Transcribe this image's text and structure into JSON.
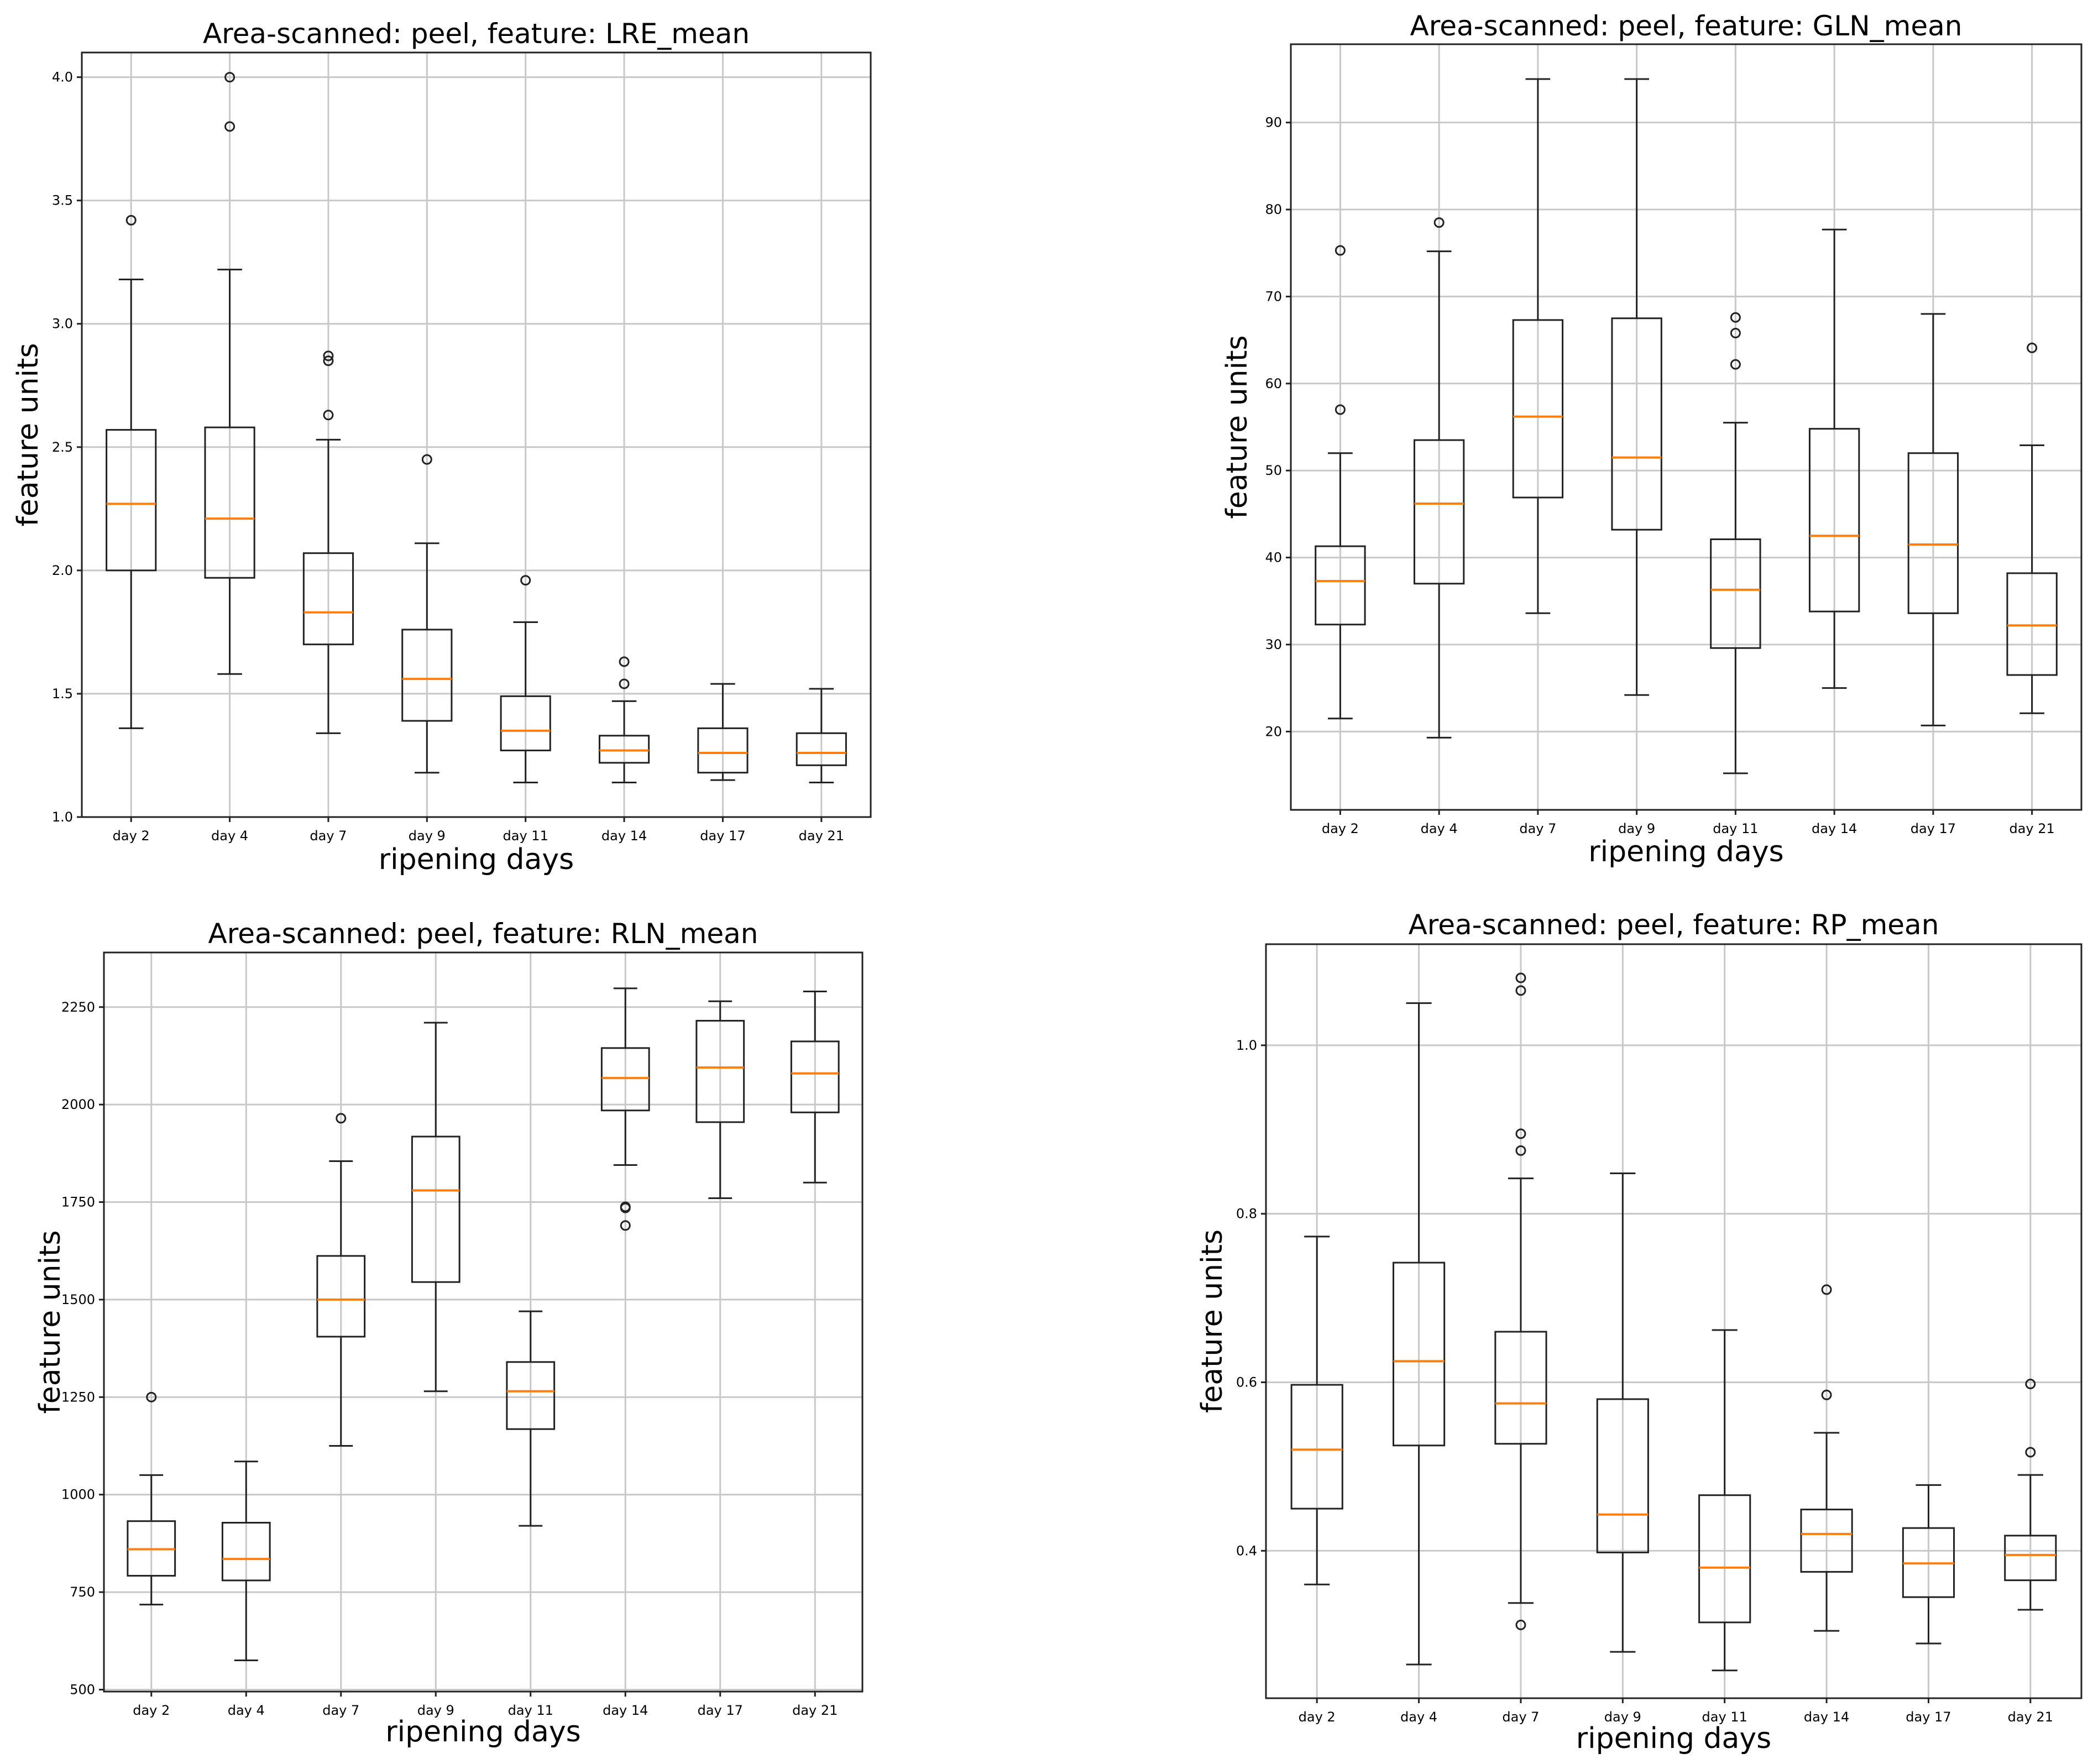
{
  "chart_data": [
    {
      "type": "box",
      "title": "Area-scanned: peel, feature: LRE_mean",
      "xlabel": "ripening days",
      "ylabel": "feature units",
      "categories": [
        "day 2",
        "day 4",
        "day 7",
        "day 9",
        "day 11",
        "day 14",
        "day 17",
        "day 21"
      ],
      "ylim": [
        1.0,
        4.1
      ],
      "yticks": [
        1.0,
        1.5,
        2.0,
        2.5,
        3.0,
        3.5,
        4.0
      ],
      "ytick_labels": [
        "1.0",
        "1.5",
        "2.0",
        "2.5",
        "3.0",
        "3.5",
        "4.0"
      ],
      "grid": true,
      "boxes": [
        {
          "whislo": 1.36,
          "q1": 2.0,
          "med": 2.27,
          "q3": 2.57,
          "whishi": 3.18,
          "fliers": [
            3.42
          ]
        },
        {
          "whislo": 1.58,
          "q1": 1.97,
          "med": 2.21,
          "q3": 2.58,
          "whishi": 3.22,
          "fliers": [
            3.8,
            4.0
          ]
        },
        {
          "whislo": 1.34,
          "q1": 1.7,
          "med": 1.83,
          "q3": 2.07,
          "whishi": 2.53,
          "fliers": [
            2.63,
            2.85,
            2.87
          ]
        },
        {
          "whislo": 1.18,
          "q1": 1.39,
          "med": 1.56,
          "q3": 1.76,
          "whishi": 2.11,
          "fliers": [
            2.45
          ]
        },
        {
          "whislo": 1.14,
          "q1": 1.27,
          "med": 1.35,
          "q3": 1.49,
          "whishi": 1.79,
          "fliers": [
            1.96
          ]
        },
        {
          "whislo": 1.14,
          "q1": 1.22,
          "med": 1.27,
          "q3": 1.33,
          "whishi": 1.47,
          "fliers": [
            1.54,
            1.63
          ]
        },
        {
          "whislo": 1.15,
          "q1": 1.18,
          "med": 1.26,
          "q3": 1.36,
          "whishi": 1.54,
          "fliers": []
        },
        {
          "whislo": 1.14,
          "q1": 1.21,
          "med": 1.26,
          "q3": 1.34,
          "whishi": 1.52,
          "fliers": []
        }
      ]
    },
    {
      "type": "box",
      "title": "Area-scanned: peel, feature: GLN_mean",
      "xlabel": "ripening days",
      "ylabel": "feature units",
      "categories": [
        "day 2",
        "day 4",
        "day 7",
        "day 9",
        "day 11",
        "day 14",
        "day 17",
        "day 21"
      ],
      "ylim": [
        11,
        99
      ],
      "yticks": [
        20,
        30,
        40,
        50,
        60,
        70,
        80,
        90
      ],
      "ytick_labels": [
        "20",
        "30",
        "40",
        "50",
        "60",
        "70",
        "80",
        "90"
      ],
      "grid": true,
      "boxes": [
        {
          "whislo": 21.5,
          "q1": 32.3,
          "med": 37.3,
          "q3": 41.3,
          "whishi": 52.0,
          "fliers": [
            57.0,
            75.3
          ]
        },
        {
          "whislo": 19.3,
          "q1": 37.0,
          "med": 46.2,
          "q3": 53.5,
          "whishi": 75.2,
          "fliers": [
            78.5
          ]
        },
        {
          "whislo": 33.6,
          "q1": 46.9,
          "med": 56.2,
          "q3": 67.3,
          "whishi": 95.0,
          "fliers": []
        },
        {
          "whislo": 24.2,
          "q1": 43.2,
          "med": 51.5,
          "q3": 67.5,
          "whishi": 95.0,
          "fliers": []
        },
        {
          "whislo": 15.2,
          "q1": 29.6,
          "med": 36.3,
          "q3": 42.1,
          "whishi": 55.5,
          "fliers": [
            62.2,
            65.8,
            67.6
          ]
        },
        {
          "whislo": 25.0,
          "q1": 33.8,
          "med": 42.5,
          "q3": 54.8,
          "whishi": 77.7,
          "fliers": []
        },
        {
          "whislo": 20.7,
          "q1": 33.6,
          "med": 41.5,
          "q3": 52.0,
          "whishi": 68.0,
          "fliers": []
        },
        {
          "whislo": 22.1,
          "q1": 26.5,
          "med": 32.2,
          "q3": 38.2,
          "whishi": 52.9,
          "fliers": [
            64.1
          ]
        }
      ]
    },
    {
      "type": "box",
      "title": "Area-scanned: peel, feature: RLN_mean",
      "xlabel": "ripening days",
      "ylabel": "feature units",
      "categories": [
        "day 2",
        "day 4",
        "day 7",
        "day 9",
        "day 11",
        "day 14",
        "day 17",
        "day 21"
      ],
      "ylim": [
        495,
        2390
      ],
      "yticks": [
        500,
        750,
        1000,
        1250,
        1500,
        1750,
        2000,
        2250
      ],
      "ytick_labels": [
        "500",
        "750",
        "1000",
        "1250",
        "1500",
        "1750",
        "2000",
        "2250"
      ],
      "grid": true,
      "boxes": [
        {
          "whislo": 718,
          "q1": 792,
          "med": 860,
          "q3": 932,
          "whishi": 1050,
          "fliers": [
            1250
          ]
        },
        {
          "whislo": 575,
          "q1": 780,
          "med": 835,
          "q3": 928,
          "whishi": 1085,
          "fliers": []
        },
        {
          "whislo": 1125,
          "q1": 1405,
          "med": 1500,
          "q3": 1612,
          "whishi": 1855,
          "fliers": [
            1965
          ]
        },
        {
          "whislo": 1265,
          "q1": 1545,
          "med": 1780,
          "q3": 1918,
          "whishi": 2210,
          "fliers": []
        },
        {
          "whislo": 920,
          "q1": 1168,
          "med": 1265,
          "q3": 1340,
          "whishi": 1470,
          "fliers": []
        },
        {
          "whislo": 1845,
          "q1": 1985,
          "med": 2068,
          "q3": 2145,
          "whishi": 2298,
          "fliers": [
            1690,
            1735,
            1738
          ]
        },
        {
          "whislo": 1760,
          "q1": 1955,
          "med": 2095,
          "q3": 2215,
          "whishi": 2265,
          "fliers": []
        },
        {
          "whislo": 1800,
          "q1": 1980,
          "med": 2080,
          "q3": 2162,
          "whishi": 2290,
          "fliers": []
        }
      ]
    },
    {
      "type": "box",
      "title": "Area-scanned: peel, feature: RP_mean",
      "xlabel": "ripening days",
      "ylabel": "feature units",
      "categories": [
        "day 2",
        "day 4",
        "day 7",
        "day 9",
        "day 11",
        "day 14",
        "day 17",
        "day 21"
      ],
      "ylim": [
        0.225,
        1.12
      ],
      "yticks": [
        0.4,
        0.6,
        0.8,
        1.0
      ],
      "ytick_labels": [
        "0.4",
        "0.6",
        "0.8",
        "1.0"
      ],
      "grid": true,
      "boxes": [
        {
          "whislo": 0.36,
          "q1": 0.45,
          "med": 0.52,
          "q3": 0.597,
          "whishi": 0.773,
          "fliers": []
        },
        {
          "whislo": 0.265,
          "q1": 0.525,
          "med": 0.625,
          "q3": 0.742,
          "whishi": 1.05,
          "fliers": []
        },
        {
          "whislo": 0.338,
          "q1": 0.527,
          "med": 0.575,
          "q3": 0.66,
          "whishi": 0.842,
          "fliers": [
            0.312,
            0.875,
            0.895,
            1.065,
            1.08
          ]
        },
        {
          "whislo": 0.28,
          "q1": 0.398,
          "med": 0.443,
          "q3": 0.58,
          "whishi": 0.848,
          "fliers": []
        },
        {
          "whislo": 0.258,
          "q1": 0.315,
          "med": 0.38,
          "q3": 0.466,
          "whishi": 0.662,
          "fliers": []
        },
        {
          "whislo": 0.305,
          "q1": 0.375,
          "med": 0.42,
          "q3": 0.449,
          "whishi": 0.54,
          "fliers": [
            0.585,
            0.71
          ]
        },
        {
          "whislo": 0.29,
          "q1": 0.345,
          "med": 0.385,
          "q3": 0.427,
          "whishi": 0.478,
          "fliers": []
        },
        {
          "whislo": 0.33,
          "q1": 0.365,
          "med": 0.395,
          "q3": 0.418,
          "whishi": 0.49,
          "fliers": [
            0.517,
            0.598
          ]
        }
      ]
    }
  ]
}
